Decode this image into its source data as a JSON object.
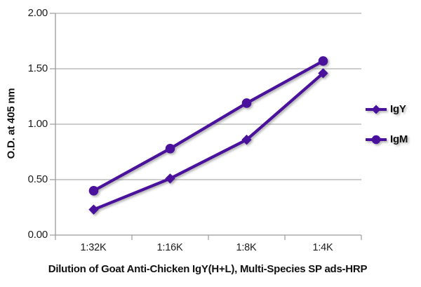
{
  "figure": {
    "background": "#ffffff",
    "series_color": "#4a119c",
    "gridline_color": "#9b9b9b",
    "axis_color": "#9b9b9b",
    "text_color": "#1c1c1c"
  },
  "chart_data": {
    "type": "line",
    "title": "",
    "xlabel": "Dilution of Goat Anti-Chicken IgY(H+L), Multi-Species SP ads-HRP",
    "ylabel": "O.D. at 405 nm",
    "categories": [
      "1:32K",
      "1:16K",
      "1:8K",
      "1:4K"
    ],
    "series": [
      {
        "name": "IgY",
        "marker": "diamond",
        "values": [
          0.23,
          0.51,
          0.86,
          1.46
        ]
      },
      {
        "name": "IgM",
        "marker": "circle",
        "values": [
          0.4,
          0.78,
          1.19,
          1.57
        ]
      }
    ],
    "ylim": [
      0.0,
      2.0
    ],
    "ytick_step": 0.5,
    "ytick_labels": [
      "0.00",
      "0.50",
      "1.00",
      "1.50",
      "2.00"
    ],
    "grid": true,
    "legend_position": "right"
  }
}
